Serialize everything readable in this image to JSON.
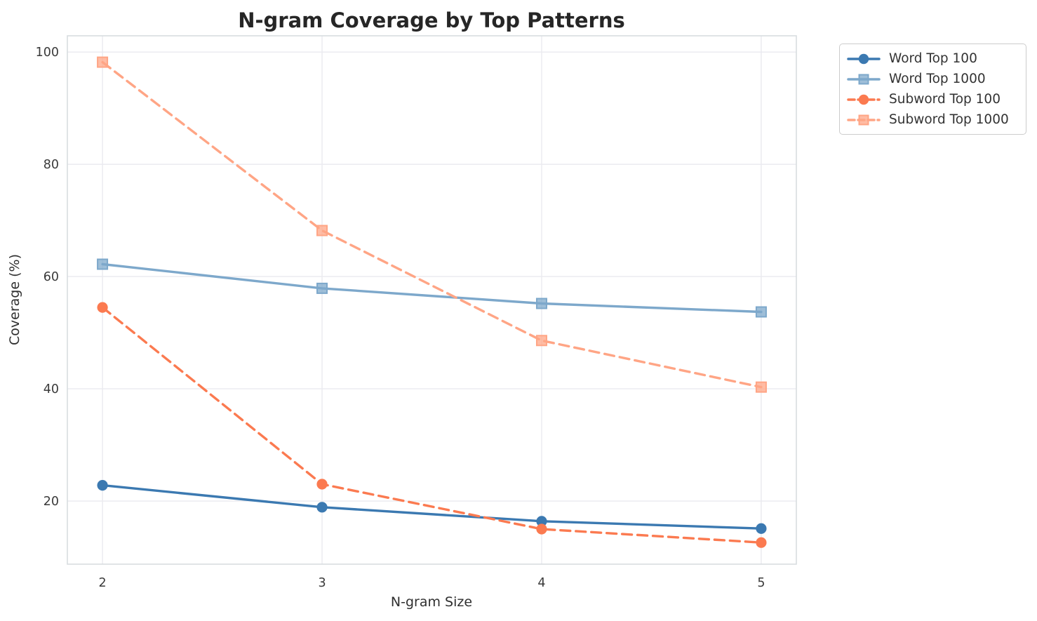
{
  "figure": {
    "background": "#ffffff"
  },
  "chart_data": {
    "type": "line",
    "title": "N-gram Coverage by Top Patterns",
    "xlabel": "N-gram Size",
    "ylabel": "Coverage (%)",
    "x": [
      2,
      3,
      4,
      5
    ],
    "xticks": [
      "2",
      "3",
      "4",
      "5"
    ],
    "yticks": [
      20,
      40,
      60,
      80,
      100
    ],
    "xlim": [
      1.84,
      5.16
    ],
    "ylim": [
      8.75,
      102.9
    ],
    "grid": true,
    "legend_position": "outside-top-right",
    "series": [
      {
        "name": "Word Top 100",
        "marker": "circle",
        "line": "solid",
        "color": "#3B79B1",
        "values": [
          22.8,
          18.9,
          16.4,
          15.1
        ]
      },
      {
        "name": "Word Top 1000",
        "marker": "square",
        "line": "solid",
        "color": "#7DA8CB",
        "values": [
          62.2,
          57.9,
          55.2,
          53.7
        ]
      },
      {
        "name": "Subword Top 100",
        "marker": "circle",
        "line": "dashed",
        "color": "#FB7A50",
        "values": [
          54.5,
          23.0,
          15.0,
          12.6
        ]
      },
      {
        "name": "Subword Top 1000",
        "marker": "square",
        "line": "dashed",
        "color": "#FFA585",
        "values": [
          98.2,
          68.2,
          48.6,
          40.3
        ]
      }
    ]
  },
  "style": {
    "grid_color": "#eaeaef",
    "spine_color": "#d8dde0",
    "title_color": "#262626",
    "label_color": "#2f2f2f",
    "tick_color": "#3a3a3a",
    "legend_border": "#cccccc",
    "legend_text": "#333333"
  }
}
